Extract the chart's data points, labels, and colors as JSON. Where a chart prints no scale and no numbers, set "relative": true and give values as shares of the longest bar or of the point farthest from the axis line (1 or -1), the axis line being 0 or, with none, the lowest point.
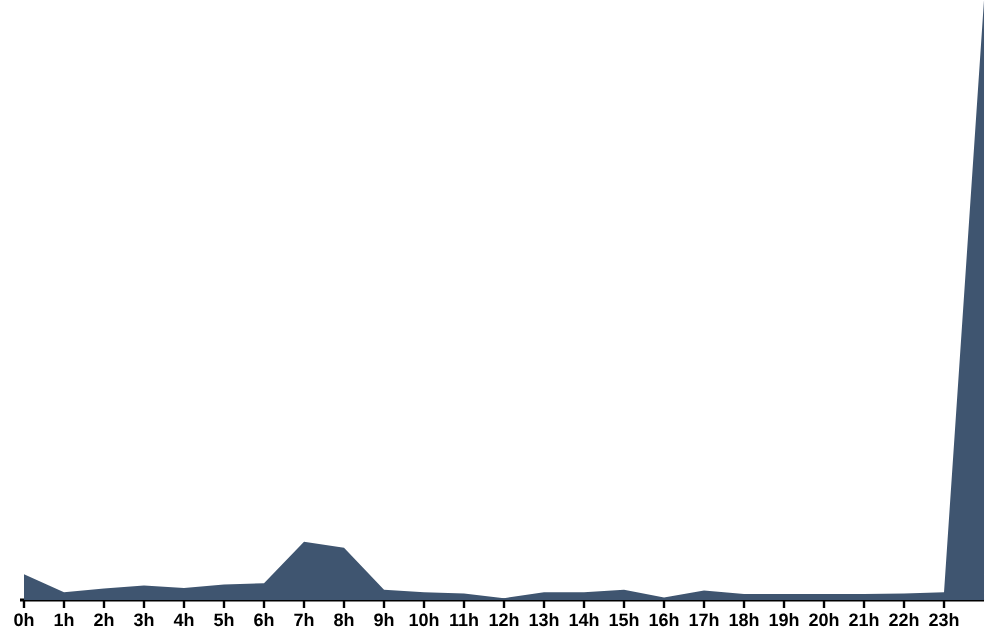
{
  "chart_data": {
    "type": "area",
    "relative": true,
    "color": "#3f5570",
    "categories": [
      "0h",
      "1h",
      "2h",
      "3h",
      "4h",
      "5h",
      "6h",
      "7h",
      "8h",
      "9h",
      "10h",
      "11h",
      "12h",
      "13h",
      "14h",
      "15h",
      "16h",
      "17h",
      "18h",
      "19h",
      "20h",
      "21h",
      "22h",
      "23h",
      null
    ],
    "values": [
      0.043,
      0.013,
      0.019,
      0.024,
      0.02,
      0.026,
      0.028,
      0.097,
      0.087,
      0.017,
      0.013,
      0.011,
      0.003,
      0.013,
      0.013,
      0.017,
      0.004,
      0.016,
      0.01,
      0.01,
      0.01,
      0.01,
      0.011,
      0.013,
      1
    ]
  }
}
